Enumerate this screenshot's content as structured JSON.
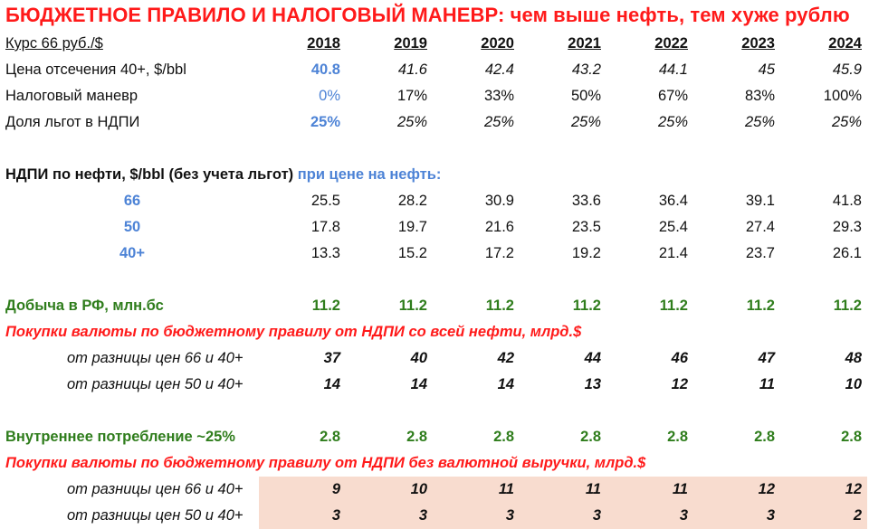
{
  "title": {
    "main": "БЮДЖЕТНОЕ ПРАВИЛО И НАЛОГОВЫЙ МАНЕВР:",
    "sub": " чем выше нефть, тем хуже рублю"
  },
  "header": {
    "label": "Курс 66 руб./$",
    "years": [
      "2018",
      "2019",
      "2020",
      "2021",
      "2022",
      "2023",
      "2024"
    ]
  },
  "cutoff": {
    "label": "Цена отсечения 40+, $/bbl",
    "values": [
      "40.8",
      "41.6",
      "42.4",
      "43.2",
      "44.1",
      "45",
      "45.9"
    ]
  },
  "maneuver": {
    "label": "Налоговый маневр",
    "values": [
      "0%",
      "17%",
      "33%",
      "50%",
      "67%",
      "83%",
      "100%"
    ]
  },
  "benefits": {
    "label": "Доля льгот в НДПИ",
    "values": [
      "25%",
      "25%",
      "25%",
      "25%",
      "25%",
      "25%",
      "25%"
    ]
  },
  "ndpi": {
    "label_black": "НДПИ по нефти, $/bbl (без учета льгот)",
    "label_blue": " при цене на нефть:",
    "rows": [
      {
        "label": "66",
        "values": [
          "25.5",
          "28.2",
          "30.9",
          "33.6",
          "36.4",
          "39.1",
          "41.8"
        ]
      },
      {
        "label": "50",
        "values": [
          "17.8",
          "19.7",
          "21.6",
          "23.5",
          "25.4",
          "27.4",
          "29.3"
        ]
      },
      {
        "label": "40+",
        "values": [
          "13.3",
          "15.2",
          "17.2",
          "19.2",
          "21.4",
          "23.7",
          "26.1"
        ]
      }
    ]
  },
  "production": {
    "label": "Добыча в РФ, млн.бс",
    "values": [
      "11.2",
      "11.2",
      "11.2",
      "11.2",
      "11.2",
      "11.2",
      "11.2"
    ]
  },
  "purchases_all": {
    "label": "Покупки валюты по бюджетному правилу от НДПИ со всей нефти, млрд.$",
    "rows": [
      {
        "label": "от разницы цен 66 и 40+",
        "values": [
          "37",
          "40",
          "42",
          "44",
          "46",
          "47",
          "48"
        ]
      },
      {
        "label": "от разницы цен 50 и 40+",
        "values": [
          "14",
          "14",
          "14",
          "13",
          "12",
          "11",
          "10"
        ]
      }
    ]
  },
  "domestic": {
    "label": "Внутреннее потребление ~25%",
    "values": [
      "2.8",
      "2.8",
      "2.8",
      "2.8",
      "2.8",
      "2.8",
      "2.8"
    ]
  },
  "purchases_noexport": {
    "label": "Покупки валюты по бюджетному правилу от НДПИ без валютной выручки, млрд.$",
    "rows": [
      {
        "label": "от разницы цен 66 и 40+",
        "values": [
          "9",
          "10",
          "11",
          "11",
          "11",
          "12",
          "12"
        ]
      },
      {
        "label": "от разницы цен 50 и 40+",
        "values": [
          "3",
          "3",
          "3",
          "3",
          "3",
          "3",
          "2"
        ]
      }
    ]
  },
  "colors": {
    "title_red": "#ff1a1a",
    "blue": "#4d83d6",
    "green": "#2f7d1c",
    "shade": "#f8dccf"
  }
}
